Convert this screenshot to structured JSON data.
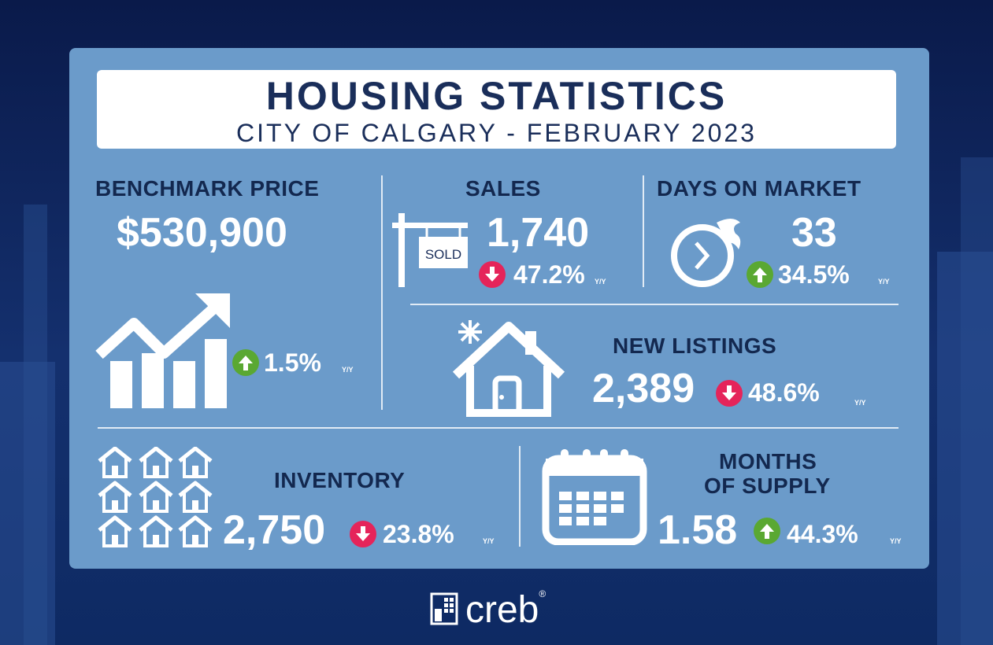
{
  "header": {
    "title": "HOUSING STATISTICS",
    "subtitle": "CITY OF CALGARY - FEBRUARY 2023"
  },
  "benchmark": {
    "label": "BENCHMARK PRICE",
    "value": "$530,900",
    "change": "1.5%",
    "direction": "up",
    "suffix": "Y/Y"
  },
  "sales": {
    "label": "SALES",
    "value": "1,740",
    "sign_text": "SOLD",
    "change": "47.2%",
    "direction": "down",
    "suffix": "Y/Y"
  },
  "days_on_market": {
    "label": "DAYS ON MARKET",
    "value": "33",
    "change": "34.5%",
    "direction": "up",
    "suffix": "Y/Y"
  },
  "new_listings": {
    "label": "NEW LISTINGS",
    "value": "2,389",
    "change": "48.6%",
    "direction": "down",
    "suffix": "Y/Y"
  },
  "inventory": {
    "label": "INVENTORY",
    "value": "2,750",
    "change": "23.8%",
    "direction": "down",
    "suffix": "Y/Y"
  },
  "months_of_supply": {
    "label_line1": "MONTHS",
    "label_line2": "OF SUPPLY",
    "value": "1.58",
    "change": "44.3%",
    "direction": "up",
    "suffix": "Y/Y"
  },
  "brand": {
    "name": "creb",
    "mark": "®"
  },
  "colors": {
    "panel": "#6b9bca",
    "title": "#1a2e5a",
    "up": "#5aa832",
    "down": "#e5245a"
  },
  "icons": [
    "growth-chart-icon",
    "sold-sign-icon",
    "stopwatch-icon",
    "house-icon",
    "houses-grid-icon",
    "calendar-icon",
    "creb-logo-icon"
  ]
}
